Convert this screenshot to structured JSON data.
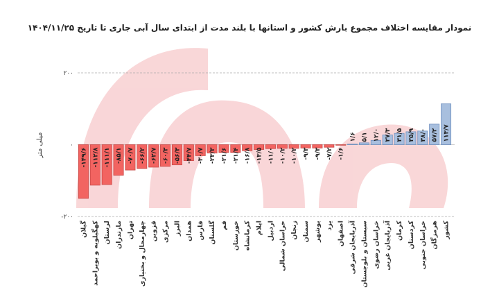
{
  "chart_data": {
    "type": "bar",
    "title": "نمودار مقایسه اختلاف مجموع بارش کشور و استانها با بلند مدت از ابتدای سال آبی جاری تا تاریخ ۱۴۰۴/۱۱/۲۵",
    "y_label": "میلی متر",
    "categories": [
      "گیلان",
      "کهگیلویه و بویراحمد",
      "لرستان",
      "مازندران",
      "تهران",
      "چهارمحال و بختیاری",
      "قزوین",
      "مرکزی",
      "البرز",
      "همدان",
      "فارس",
      "گلستان",
      "قم",
      "خوزستان",
      "کرمانشاه",
      "ایلام",
      "اردبیل",
      "خراسان شمالی",
      "زنجان",
      "سمنان",
      "بوشهر",
      "یزد",
      "اصفهان",
      "آذربایجان شرقی",
      "سیستان و بلوچستان",
      "خراسان رضوی",
      "آذربایجان غربی",
      "کرمان",
      "کردستان",
      "خراسان جنوبی",
      "هرمزگان",
      "کشور"
    ],
    "values": [
      -149.6,
      -112.8,
      -111.1,
      -85.1,
      -70.7,
      -66.2,
      -62.7,
      -60.3,
      -56.3,
      -44.7,
      -30.7,
      -23.3,
      -21.6,
      -21.4,
      -16.8,
      -13.5,
      -11.0,
      -10.2,
      -10.2,
      -9.3,
      -9.3,
      -7.2,
      -1.6,
      1.6,
      5.1,
      12.0,
      27.3,
      31.5,
      35.9,
      38.0,
      57.2,
      113.7
    ],
    "value_labels": [
      "-۱۴۹/۶",
      "-۱۱۲/۸",
      "-۱۱۱/۱",
      "-۸۵/۱",
      "-۷۰/۷",
      "-۶۶/۲",
      "-۶۲/۷",
      "-۶۰/۳",
      "-۵۶/۳",
      "-۴۴/۷",
      "-۳۰/۷",
      "-۲۳/۳",
      "-۲۱/۶",
      "-۲۱/۴",
      "-۱۶/۸",
      "-۱۳/۵",
      "-۱۱/۰",
      "-۱۰/۲",
      "-۱۰/۲",
      "-۹/۳",
      "-۹/۳",
      "-۷/۲",
      "-۱/۶",
      "۱/۶",
      "۵/۱",
      "۱۲/۰",
      "۲۷/۳",
      "۳۱/۵",
      "۳۵/۹",
      "۳۸/۰",
      "۵۷/۲",
      "۱۱۳/۷"
    ],
    "colors": {
      "negative": "#f26461",
      "positive": "#a8bfde"
    },
    "ylim": [
      -200,
      200
    ],
    "yticks": [
      {
        "value": -200,
        "label": "-۲۰۰"
      },
      {
        "value": 0,
        "label": "۰"
      },
      {
        "value": 200,
        "label": "۲۰۰"
      }
    ],
    "grid": true
  }
}
